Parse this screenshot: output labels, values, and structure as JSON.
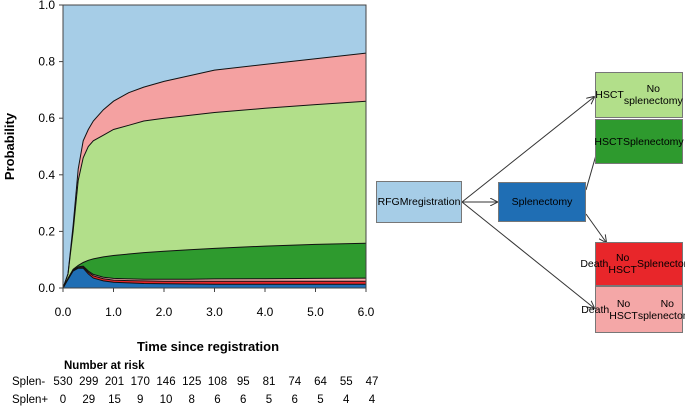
{
  "chart_data": {
    "type": "area",
    "xlabel": "Time since registration",
    "ylabel": "Probability",
    "xlim": [
      0,
      6
    ],
    "ylim": [
      0,
      1
    ],
    "x_ticks": [
      "0.0",
      "1.0",
      "2.0",
      "3.0",
      "4.0",
      "5.0",
      "6.0"
    ],
    "y_ticks": [
      "0.0",
      "0.2",
      "0.4",
      "0.6",
      "0.8",
      "1.0"
    ],
    "grid": false,
    "x": [
      0,
      0.1,
      0.2,
      0.3,
      0.4,
      0.5,
      0.6,
      0.8,
      1.0,
      1.3,
      1.6,
      2.0,
      2.5,
      3.0,
      4.0,
      5.0,
      6.0
    ],
    "cumulative_boundaries": [
      {
        "name": "Splenectomy",
        "color": "#1f6eb4",
        "values": [
          0,
          0.03,
          0.06,
          0.07,
          0.07,
          0.05,
          0.035,
          0.025,
          0.02,
          0.018,
          0.016,
          0.015,
          0.014,
          0.013,
          0.013,
          0.013,
          0.013
        ]
      },
      {
        "name": "Death No HSCT Splenectomy",
        "color": "#e8262a",
        "values": [
          0,
          0.032,
          0.062,
          0.073,
          0.074,
          0.056,
          0.043,
          0.033,
          0.028,
          0.026,
          0.025,
          0.024,
          0.024,
          0.024,
          0.024,
          0.024,
          0.024
        ]
      },
      {
        "name": "Death No HSCT No splenectomy",
        "color": "#f4a7a7",
        "values": [
          0,
          0.033,
          0.064,
          0.075,
          0.077,
          0.06,
          0.048,
          0.038,
          0.034,
          0.032,
          0.031,
          0.031,
          0.031,
          0.032,
          0.033,
          0.034,
          0.035
        ]
      },
      {
        "name": "HSCT Splenectomy",
        "color": "#2e9a2e",
        "values": [
          0,
          0.034,
          0.066,
          0.08,
          0.09,
          0.098,
          0.103,
          0.11,
          0.115,
          0.12,
          0.125,
          0.13,
          0.135,
          0.14,
          0.148,
          0.154,
          0.158
        ]
      },
      {
        "name": "HSCT No splenectomy",
        "color": "#b2df8a",
        "values": [
          0,
          0.05,
          0.2,
          0.38,
          0.46,
          0.5,
          0.52,
          0.54,
          0.56,
          0.575,
          0.59,
          0.6,
          0.61,
          0.62,
          0.635,
          0.648,
          0.66
        ]
      },
      {
        "name": "Death No HSCT No splenectomy",
        "color": "#f4a1a1",
        "values": [
          0,
          0.05,
          0.22,
          0.42,
          0.52,
          0.56,
          0.59,
          0.63,
          0.66,
          0.69,
          0.71,
          0.73,
          0.75,
          0.77,
          0.79,
          0.81,
          0.83
        ]
      },
      {
        "name": "RFGM registration",
        "color": "#a6cde7",
        "values": [
          1,
          1,
          1,
          1,
          1,
          1,
          1,
          1,
          1,
          1,
          1,
          1,
          1,
          1,
          1,
          1,
          1
        ]
      }
    ],
    "risk_table": {
      "title": "Number at risk",
      "rows": [
        {
          "label": "Splen-",
          "values": [
            "530",
            "299",
            "201",
            "170",
            "146",
            "125",
            "108",
            "95",
            "81",
            "74",
            "64",
            "55",
            "47"
          ]
        },
        {
          "label": "Splen+",
          "values": [
            "0",
            "29",
            "15",
            "9",
            "10",
            "8",
            "6",
            "6",
            "5",
            "6",
            "5",
            "4",
            "4"
          ]
        }
      ]
    }
  },
  "diagram": {
    "boxes": [
      {
        "id": "rfgm",
        "lines": [
          "RFGM",
          "registration"
        ],
        "color": "#a6cde7"
      },
      {
        "id": "splen",
        "lines": [
          "Splenectomy"
        ],
        "color": "#1f6eb4"
      },
      {
        "id": "hsct_nosplen",
        "lines": [
          "HSCT",
          "No splenectomy"
        ],
        "color": "#b2df8a"
      },
      {
        "id": "hsct_splen",
        "lines": [
          "HSCT",
          "Splenectomy"
        ],
        "color": "#2e9a2e"
      },
      {
        "id": "death_splen",
        "lines": [
          "Death",
          "No HSCT",
          "Splenectomy"
        ],
        "color": "#e8262a"
      },
      {
        "id": "death_nosplen",
        "lines": [
          "Death",
          "No HSCT",
          "No splenectomy"
        ],
        "color": "#f4a7a7"
      }
    ]
  }
}
